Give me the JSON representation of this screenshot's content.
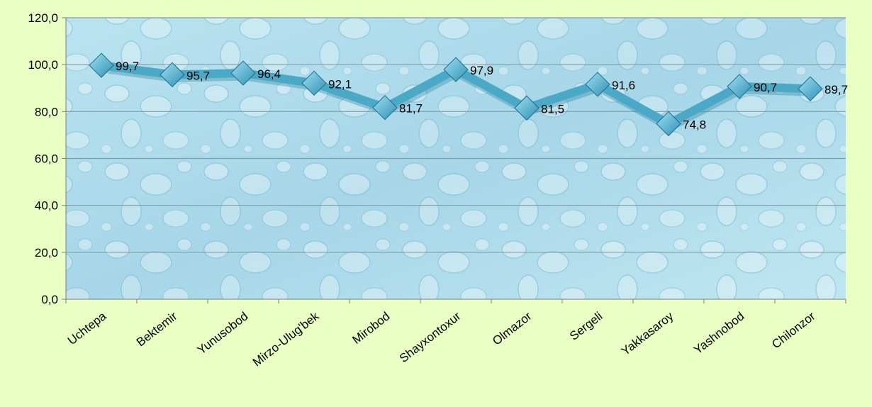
{
  "chart_data": {
    "type": "line",
    "categories": [
      "Uchtepa",
      "Bektemir",
      "Yunusobod",
      "Mirzo-Ulug'bek",
      "Mirobod",
      "Shayxontoxur",
      "Olmazor",
      "Sergeli",
      "Yakkasaroy",
      "Yashnobod",
      "Chilonzor"
    ],
    "series": [
      {
        "values": [
          99.7,
          95.7,
          96.4,
          92.1,
          81.7,
          97.9,
          81.5,
          91.6,
          74.8,
          90.7,
          89.7
        ],
        "labels": [
          "99,7",
          "95,7",
          "96,4",
          "92,1",
          "81,7",
          "97,9",
          "81,5",
          "91,6",
          "74,8",
          "90,7",
          "89,7"
        ]
      }
    ],
    "yticks": [
      "0,0",
      "20,0",
      "40,0",
      "60,0",
      "80,0",
      "100,0",
      "120,0"
    ],
    "ylim": [
      0,
      120
    ],
    "grid": true,
    "legend": "none",
    "colors": {
      "page_background": "#eaffc4",
      "plot_background": "#a9d9ea",
      "line": "#4ba9c8",
      "marker": "#5bbcdc",
      "gridline": "#8a9a9e",
      "axis": "#7f7f7f"
    }
  }
}
